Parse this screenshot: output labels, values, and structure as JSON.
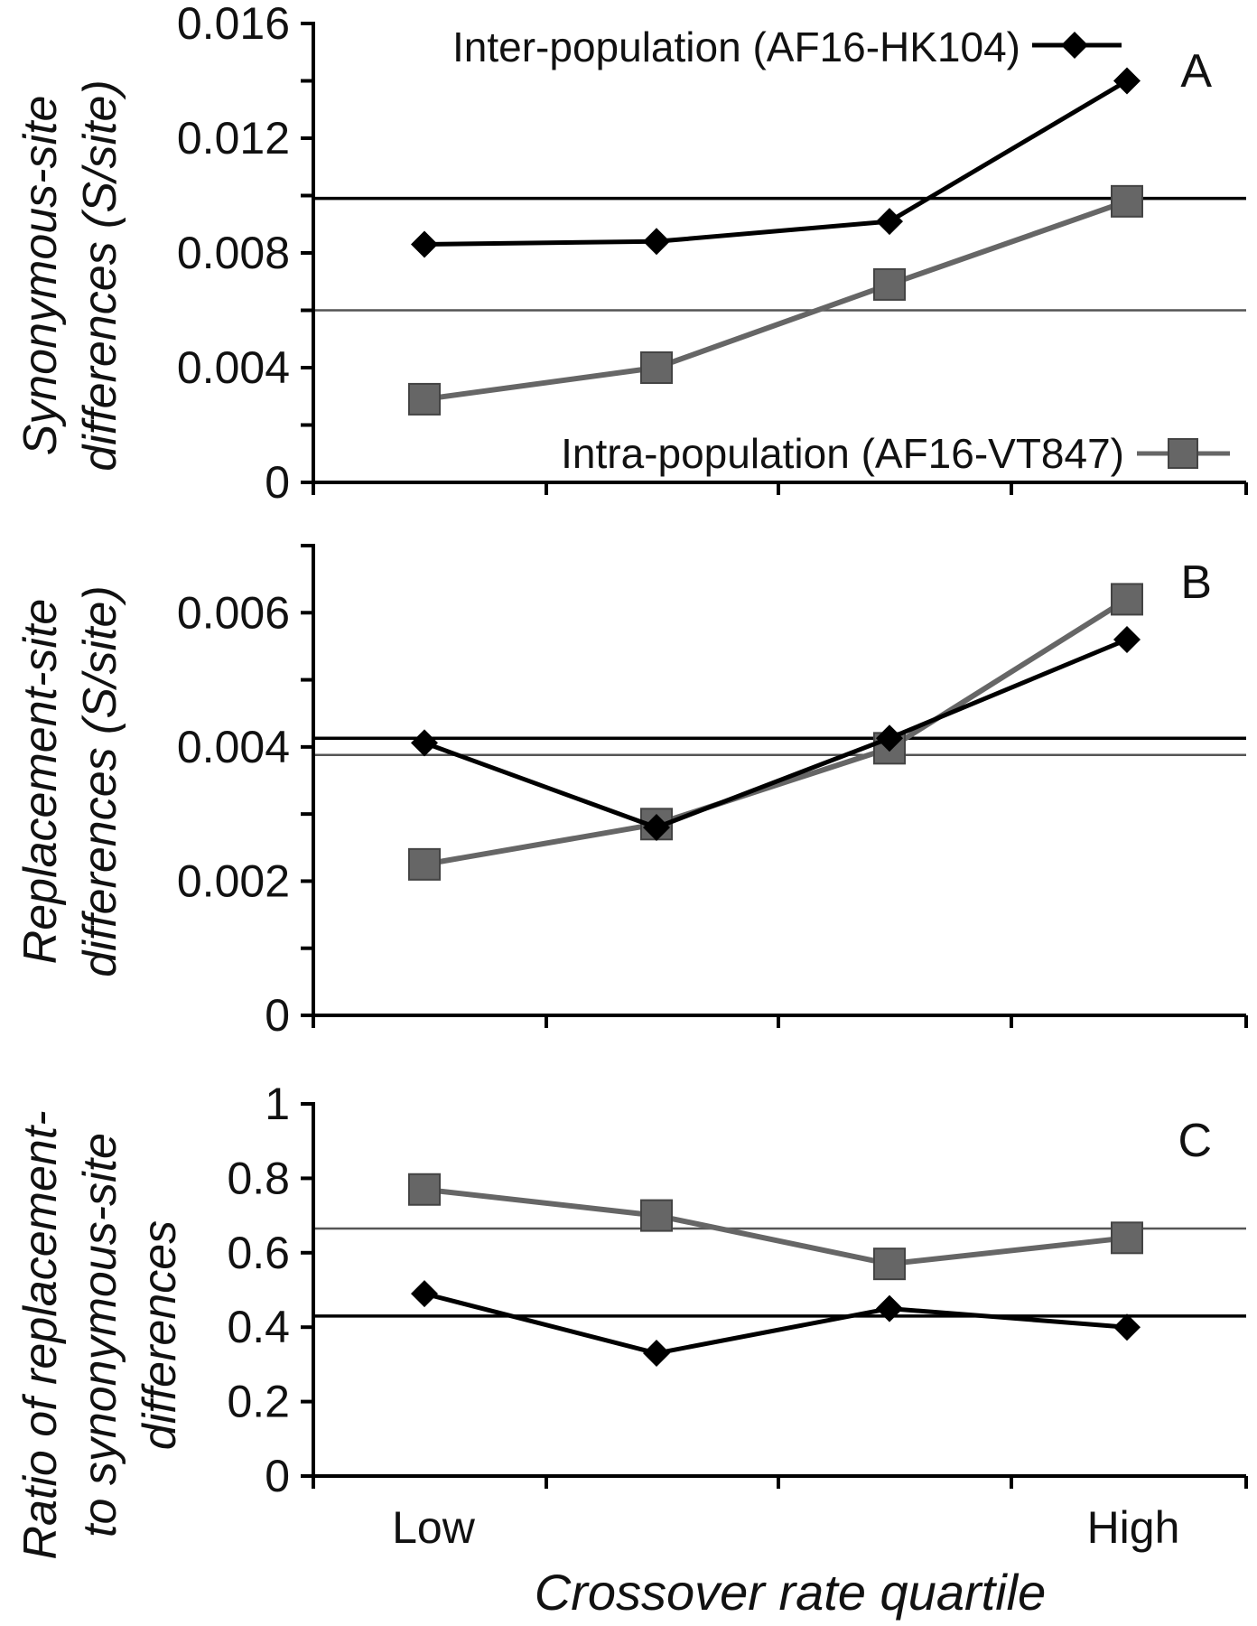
{
  "chart_data": [
    {
      "panel": "A",
      "type": "line",
      "categories": [
        "Low",
        "",
        "",
        "High"
      ],
      "ylabel_lines": [
        "Synonymous-site",
        "differences (S/site)"
      ],
      "ylim": [
        0,
        0.016
      ],
      "yticks": [
        "0",
        "0.004",
        "0.008",
        "0.012",
        "0.016"
      ],
      "ytick_values": [
        0,
        0.004,
        0.008,
        0.012,
        0.016
      ],
      "series": [
        {
          "name": "Inter-population (AF16-HK104)",
          "marker": "diamond",
          "color": "#000000",
          "values": [
            0.0083,
            0.0084,
            0.0091,
            0.014
          ],
          "mean": 0.0099
        },
        {
          "name": "Intra-population (AF16-VT847)",
          "marker": "square",
          "color": "#666666",
          "values": [
            0.0029,
            0.004,
            0.0069,
            0.0098
          ],
          "mean": 0.006
        }
      ],
      "legend_placement": "top and bottom right"
    },
    {
      "panel": "B",
      "type": "line",
      "categories": [
        "Low",
        "",
        "",
        "High"
      ],
      "ylabel_lines": [
        "Replacement-site",
        "differences (S/site)"
      ],
      "ylim": [
        0,
        0.007
      ],
      "yticks": [
        "0",
        "0.002",
        "0.004",
        "0.006"
      ],
      "ytick_values": [
        0,
        0.002,
        0.004,
        0.006
      ],
      "series": [
        {
          "name": "Inter-population (AF16-HK104)",
          "marker": "diamond",
          "color": "#000000",
          "values": [
            0.00406,
            0.0028,
            0.00413,
            0.0056
          ],
          "mean": 0.00413
        },
        {
          "name": "Intra-population (AF16-VT847)",
          "marker": "square",
          "color": "#666666",
          "values": [
            0.00225,
            0.00285,
            0.00398,
            0.0062
          ],
          "mean": 0.00388
        }
      ]
    },
    {
      "panel": "C",
      "type": "line",
      "categories": [
        "Low",
        "",
        "",
        "High"
      ],
      "xlabel": "Crossover rate quartile",
      "ylabel_lines": [
        "Ratio of replacement-",
        "to synonymous-site",
        "differences"
      ],
      "ylim": [
        0,
        1
      ],
      "yticks": [
        "0",
        "0.2",
        "0.4",
        "0.6",
        "0.8",
        "1"
      ],
      "ytick_values": [
        0,
        0.2,
        0.4,
        0.6,
        0.8,
        1
      ],
      "series": [
        {
          "name": "Inter-population (AF16-HK104)",
          "marker": "diamond",
          "color": "#000000",
          "values": [
            0.49,
            0.33,
            0.45,
            0.4
          ],
          "mean": 0.43
        },
        {
          "name": "Intra-population (AF16-VT847)",
          "marker": "square",
          "color": "#666666",
          "values": [
            0.77,
            0.7,
            0.57,
            0.64
          ],
          "mean": 0.665
        }
      ]
    }
  ]
}
